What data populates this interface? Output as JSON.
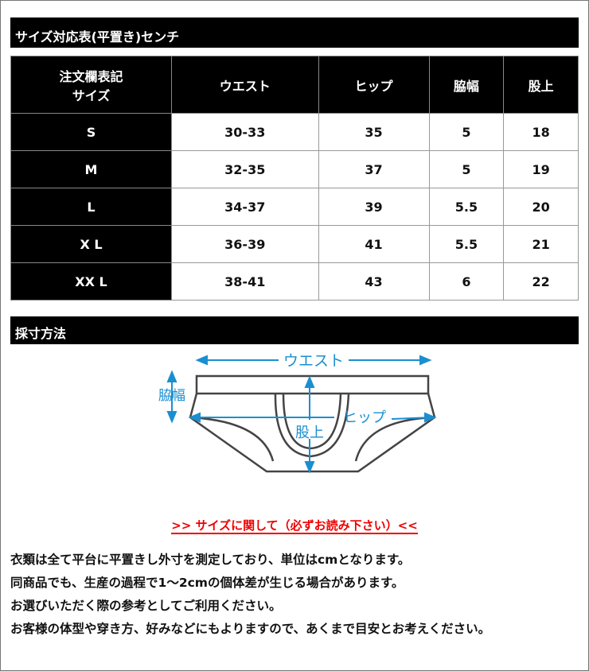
{
  "size_chart": {
    "title": "サイズ対応表(平置き)センチ",
    "headers": [
      "注文欄表記\nサイズ",
      "ウエスト",
      "ヒップ",
      "脇幅",
      "股上"
    ],
    "rows": [
      [
        "S",
        "30-33",
        "35",
        "5",
        "18"
      ],
      [
        "M",
        "32-35",
        "37",
        "5",
        "19"
      ],
      [
        "L",
        "34-37",
        "39",
        "5.5",
        "20"
      ],
      [
        "X L",
        "36-39",
        "41",
        "5.5",
        "21"
      ],
      [
        "XX L",
        "38-41",
        "43",
        "6",
        "22"
      ]
    ]
  },
  "measure": {
    "title": "採寸方法",
    "labels": {
      "waist": "ウエスト",
      "side": "脇幅",
      "hip": "ヒップ",
      "rise": "股上"
    },
    "accent": "#1a8fd0"
  },
  "notice": {
    "link": ">> サイズに関して（必ずお読み下さい）<<",
    "link_color": "#e00000",
    "lines": [
      "衣類は全て平台に平置きし外寸を測定しており、単位はcmとなります。",
      "同商品でも、生産の過程で1～2cmの個体差が生じる場合があります。",
      "お選びいただく際の参考としてご利用ください。",
      "お客様の体型や穿き方、好みなどにもよりますので、あくまで目安とお考えください。"
    ]
  }
}
